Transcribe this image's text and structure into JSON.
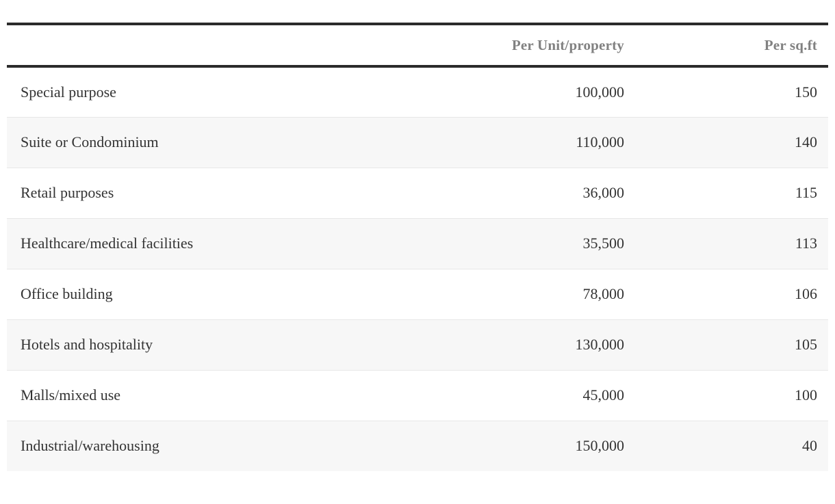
{
  "table": {
    "columns": {
      "label": "",
      "per_unit": "Per Unit/property",
      "per_sqft": "Per sq.ft"
    },
    "rows": [
      {
        "label": "Special purpose",
        "per_unit": "100,000",
        "per_sqft": "150"
      },
      {
        "label": "Suite or Condominium",
        "per_unit": "110,000",
        "per_sqft": "140"
      },
      {
        "label": "Retail purposes",
        "per_unit": "36,000",
        "per_sqft": "115"
      },
      {
        "label": "Healthcare/medical facilities",
        "per_unit": "35,500",
        "per_sqft": "113"
      },
      {
        "label": "Office building",
        "per_unit": "78,000",
        "per_sqft": "106"
      },
      {
        "label": "Hotels and hospitality",
        "per_unit": "130,000",
        "per_sqft": "105"
      },
      {
        "label": "Malls/mixed use",
        "per_unit": "45,000",
        "per_sqft": "100"
      },
      {
        "label": "Industrial/warehousing",
        "per_unit": "150,000",
        "per_sqft": "40"
      }
    ],
    "colors": {
      "rule": "#2b2b2b",
      "header_text": "#818181",
      "body_text": "#333333",
      "stripe": "#f7f7f7",
      "hairline": "#e7e7e7",
      "background": "#ffffff"
    }
  }
}
